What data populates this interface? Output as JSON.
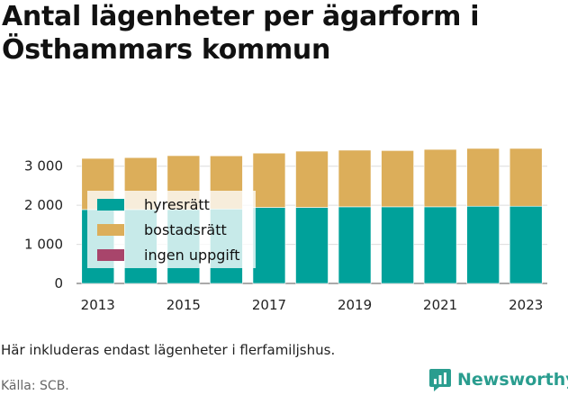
{
  "title": "Antal lägenheter per ägarform i Östhammars kommun",
  "note": "Här inkluderas endast lägenheter i flerfamiljshus.",
  "source": "Källa: SCB.",
  "brand": {
    "name": "Newsworthy",
    "icon": "newsworthy-logo-icon",
    "color": "#2a9d8f"
  },
  "chart_data": {
    "type": "bar",
    "stacked": true,
    "categories": [
      "2013",
      "2014",
      "2015",
      "2016",
      "2017",
      "2018",
      "2019",
      "2020",
      "2021",
      "2022",
      "2023"
    ],
    "x_tick_labels": [
      "2013",
      "2015",
      "2017",
      "2019",
      "2021",
      "2023"
    ],
    "y_ticks": [
      0,
      1000,
      2000,
      3000
    ],
    "y_tick_labels": [
      "0",
      "1 000",
      "2 000",
      "3 000"
    ],
    "ylim": [
      0,
      3500
    ],
    "grid": "horizontal",
    "legend_placement": "inside-left",
    "series": [
      {
        "name": "hyresrätt",
        "color": "#00a19a",
        "values": [
          1890,
          1890,
          1890,
          1905,
          1945,
          1945,
          1960,
          1960,
          1960,
          1975,
          1975
        ]
      },
      {
        "name": "bostadsrätt",
        "color": "#dcae5a",
        "values": [
          1310,
          1330,
          1380,
          1360,
          1390,
          1440,
          1450,
          1440,
          1470,
          1480,
          1480
        ]
      },
      {
        "name": "ingen uppgift",
        "color": "#a8456b",
        "values": [
          0,
          0,
          0,
          0,
          0,
          0,
          0,
          0,
          0,
          0,
          0
        ]
      }
    ]
  }
}
